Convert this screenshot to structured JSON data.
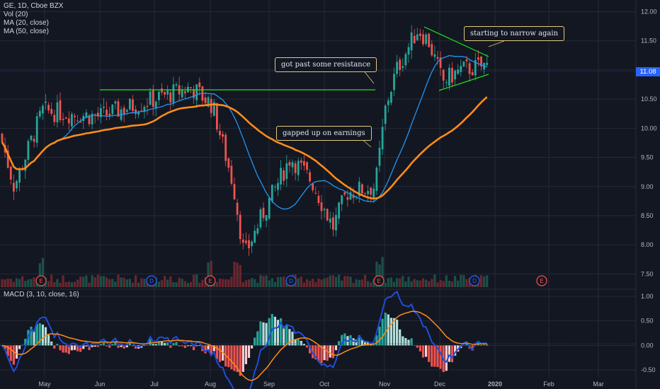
{
  "legend": {
    "symbol_line": "GE, 1D, Cboe BZX",
    "vol_line": "Vol (20)",
    "ma20_line": "MA (20, close)",
    "ma50_line": "MA (50, close)"
  },
  "macd_label": "MACD (3, 10, close, 16)",
  "last_price": "11.08",
  "annotations": {
    "resistance": "got past some resistance",
    "gap": "gapped up on earnings",
    "narrow": "starting to narrow again"
  },
  "colors": {
    "background": "#131722",
    "grid": "#262a36",
    "up": "#26a69a",
    "down": "#ef5350",
    "ma20": "#2196f3",
    "ma50": "#ff8c1a",
    "trendline": "#1ee61e",
    "macd_line": "#1e4fd8",
    "signal_line": "#ff8c1a",
    "last_price_tag": "#2962ff"
  },
  "chart_data": {
    "type": "candlestick",
    "price_axis": {
      "ticks": [
        "12.00",
        "11.50",
        "11.00",
        "10.50",
        "10.00",
        "9.50",
        "9.00",
        "8.50",
        "8.00",
        "7.50"
      ],
      "range": [
        7.25,
        12.2
      ]
    },
    "macd_axis": {
      "ticks": [
        "1.00",
        "0.50",
        "0.00",
        "-0.50"
      ],
      "range": [
        -0.6,
        1.1
      ]
    },
    "time_axis": {
      "labels": [
        "May",
        "Jun",
        "Jul",
        "Aug",
        "Sep",
        "Oct",
        "Nov",
        "Dec",
        "2020",
        "Feb",
        "Mar"
      ]
    },
    "earnings_markers": [
      "E",
      "E",
      "E",
      "E"
    ],
    "dividend_markers": [
      "D",
      "D",
      "D"
    ],
    "key_points": [
      {
        "x": "start",
        "close": 9.9
      },
      {
        "x": "late Apr",
        "close": 9.0
      },
      {
        "x": "May",
        "close": 10.3
      },
      {
        "x": "mid Jun",
        "close": 10.2
      },
      {
        "x": "late Jul",
        "close": 10.7
      },
      {
        "x": "early Aug",
        "close": 7.8
      },
      {
        "x": "mid Sep",
        "close": 9.5
      },
      {
        "x": "early Oct",
        "close": 8.3
      },
      {
        "x": "late Oct",
        "close": 9.0
      },
      {
        "x": "early Nov",
        "close": 11.0
      },
      {
        "x": "late Nov",
        "close": 11.7
      },
      {
        "x": "early Dec",
        "close": 10.8
      },
      {
        "x": "late Dec",
        "close": 11.08
      }
    ],
    "horizontal_resistance": 10.75,
    "triangle_upper": [
      11.9,
      11.35
    ],
    "triangle_lower": [
      10.72,
      11.0
    ]
  }
}
